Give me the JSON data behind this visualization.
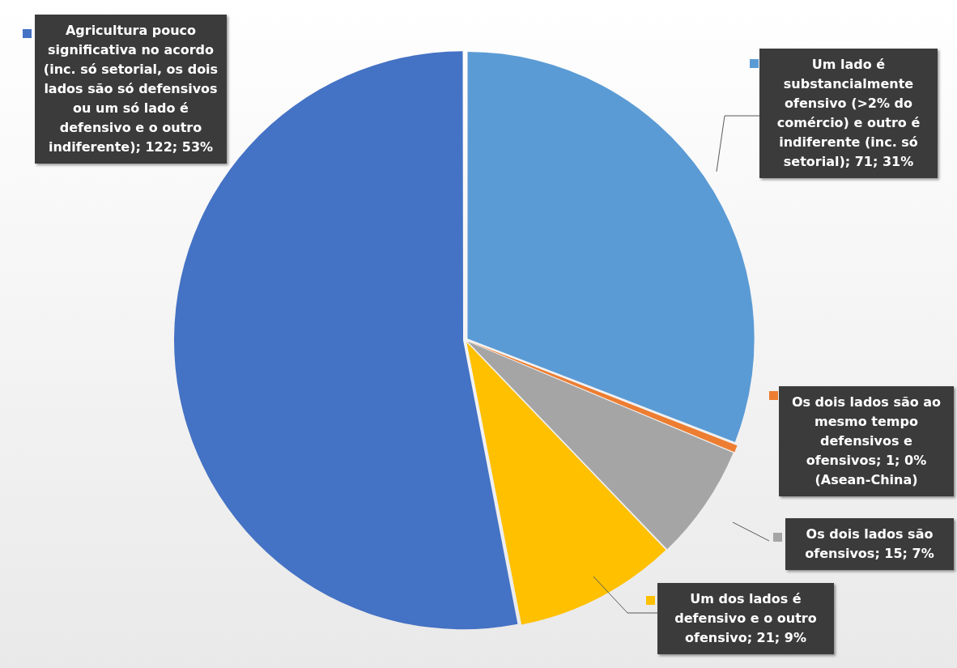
{
  "chart_data": {
    "type": "pie",
    "categories": [
      "Um lado é substancialmente ofensivo (>2% do comércio) e outro é indiferente (inc. só setorial)",
      "Os dois lados são ao mesmo tempo defensivos e ofensivos",
      "Os dois lados são ofensivos",
      "Um dos lados é defensivo e o outro ofensivo",
      "Agricultura pouco significativa  no acordo (inc. só setorial, os dois lados são só defensivos ou um só lado é defensivo e o outro indiferente)"
    ],
    "values": [
      71,
      1,
      15,
      21,
      122
    ],
    "colors": [
      "#5b9bd5",
      "#ed7d31",
      "#a5a5a5",
      "#ffc000",
      "#4472c4"
    ],
    "legend": "right",
    "value_labels": [
      "71; 31%",
      "1; 0% (Asean-China)",
      "15; 7%",
      "21; 9%",
      "122; 53%"
    ]
  }
}
